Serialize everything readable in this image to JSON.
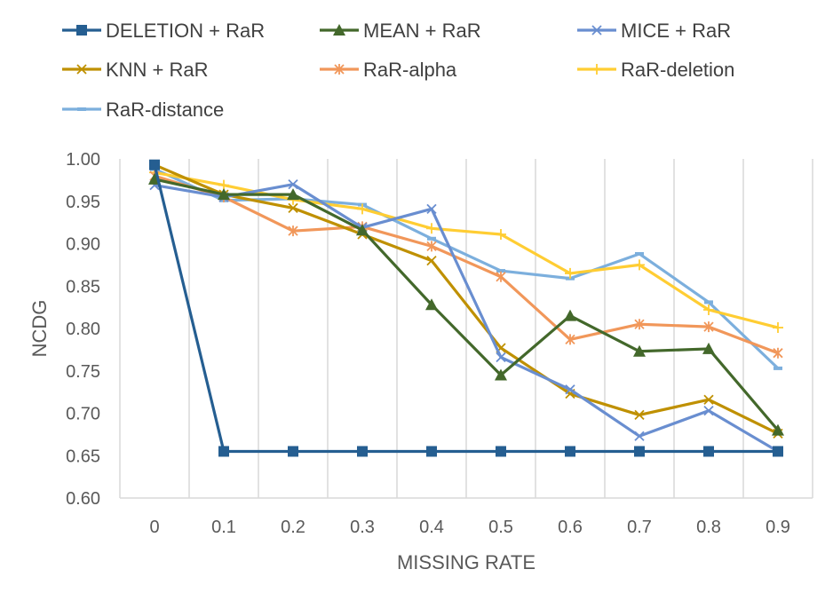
{
  "chart_data": {
    "type": "line",
    "title": "",
    "xlabel": "MISSING RATE",
    "ylabel": "NCDG",
    "categories": [
      "0",
      "0.1",
      "0.2",
      "0.3",
      "0.4",
      "0.5",
      "0.6",
      "0.7",
      "0.8",
      "0.9"
    ],
    "y_tick_labels": [
      "0.60",
      "0.65",
      "0.70",
      "0.75",
      "0.80",
      "0.85",
      "0.90",
      "0.95",
      "1.00"
    ],
    "ylim": [
      0.6,
      1.0
    ],
    "grid": "vertical",
    "legend_position": "top",
    "series": [
      {
        "name": "DELETION + RaR",
        "color": "#255e91",
        "marker": "square",
        "values": [
          0.993,
          0.655,
          0.655,
          0.655,
          0.655,
          0.655,
          0.655,
          0.655,
          0.655,
          0.655
        ]
      },
      {
        "name": "MEAN + RaR",
        "color": "#43682b",
        "marker": "triangle",
        "values": [
          0.976,
          0.958,
          0.958,
          0.916,
          0.828,
          0.745,
          0.815,
          0.773,
          0.776,
          0.68
        ]
      },
      {
        "name": "MICE + RaR",
        "color": "#698ed0",
        "marker": "x",
        "values": [
          0.969,
          0.955,
          0.97,
          0.919,
          0.941,
          0.766,
          0.728,
          0.673,
          0.703,
          0.655
        ]
      },
      {
        "name": "KNN + RaR",
        "color": "#bf9000",
        "marker": "x",
        "values": [
          0.993,
          0.958,
          0.942,
          0.911,
          0.88,
          0.777,
          0.723,
          0.698,
          0.716,
          0.676
        ]
      },
      {
        "name": "RaR-alpha",
        "color": "#f1975a",
        "marker": "star",
        "values": [
          0.98,
          0.955,
          0.915,
          0.92,
          0.897,
          0.861,
          0.787,
          0.805,
          0.802,
          0.771
        ]
      },
      {
        "name": "RaR-deletion",
        "color": "#ffcd33",
        "marker": "plus",
        "values": [
          0.984,
          0.969,
          0.952,
          0.941,
          0.918,
          0.911,
          0.865,
          0.875,
          0.822,
          0.801
        ]
      },
      {
        "name": "RaR-distance",
        "color": "#7cafdd",
        "marker": "dash",
        "values": [
          0.988,
          0.951,
          0.953,
          0.946,
          0.906,
          0.868,
          0.859,
          0.888,
          0.831,
          0.753
        ]
      }
    ]
  }
}
